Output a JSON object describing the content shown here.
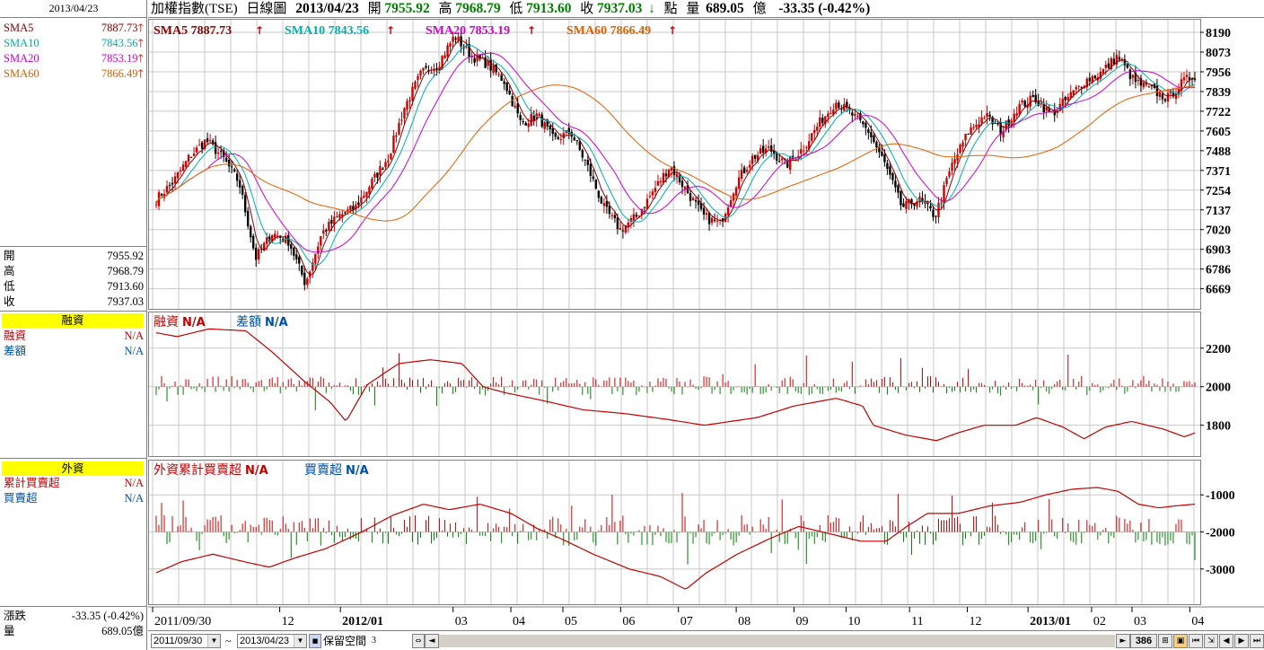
{
  "left_panel": {
    "date": "2013/04/23",
    "sma": [
      {
        "label": "SMA5",
        "value": "7887.73",
        "color": "#8b0000"
      },
      {
        "label": "SMA10",
        "value": "7843.56",
        "color": "#00b0b0"
      },
      {
        "label": "SMA20",
        "value": "7853.19",
        "color": "#d000d0"
      },
      {
        "label": "SMA60",
        "value": "7866.49",
        "color": "#e06000"
      }
    ],
    "ohlc": [
      {
        "label": "開",
        "value": "7955.92"
      },
      {
        "label": "高",
        "value": "7968.79"
      },
      {
        "label": "低",
        "value": "7913.60"
      },
      {
        "label": "收",
        "value": "7937.03"
      }
    ],
    "margin_head": "融資",
    "margin_rows": [
      {
        "label": "融資",
        "value": "N/A",
        "color": "#c00000"
      },
      {
        "label": "差額",
        "value": "N/A",
        "color": "#0050a0"
      }
    ],
    "foreign_head": "外資",
    "foreign_rows": [
      {
        "label": "累計買賣超",
        "value": "N/A",
        "color": "#c00000"
      },
      {
        "label": "買賣超",
        "value": "N/A",
        "color": "#0050a0"
      }
    ],
    "change_label": "漲跌",
    "change_value": "-33.35 (-0.42%)",
    "volume_label": "量",
    "volume_value": "689.05億"
  },
  "titlebar": {
    "name": "加權指數(TSE)",
    "view": "日線圖",
    "date": "2013/04/23",
    "open_label": "開",
    "open": "7955.92",
    "high_label": "高",
    "high": "7968.79",
    "low_label": "低",
    "low": "7913.60",
    "close_label": "收",
    "close": "7937.03",
    "down_arrow": "↓",
    "unit_point": "點",
    "volume_label": "量",
    "volume": "689.05",
    "volume_unit": "億",
    "change": "-33.35 (-0.42%)"
  },
  "toolbar": {
    "start_date": "2011/09/30",
    "tilde": "~",
    "end_date": "2013/04/23",
    "reserve_label": "保留空間",
    "reserve_value": "3",
    "bar_count": "386"
  },
  "colors": {
    "up_bar": "#d00000",
    "down_bar": "#008000",
    "sma5": "#8b0000",
    "sma10": "#00b0b0",
    "sma20": "#d000d0",
    "sma60": "#e06000",
    "margin_line": "#c00000",
    "foreign_line": "#c00000",
    "grid": "#c8c8c8"
  },
  "chart_data": [
    {
      "type": "line",
      "name": "price",
      "legend": [
        {
          "label": "SMA5",
          "value": "7887.73",
          "color": "#8b0000"
        },
        {
          "label": "SMA10",
          "value": "7843.56",
          "color": "#00b0b0"
        },
        {
          "label": "SMA20",
          "value": "7853.19",
          "color": "#d000d0"
        },
        {
          "label": "SMA60",
          "value": "7866.49",
          "color": "#e06000"
        }
      ],
      "legend_arrow": "↑",
      "yticks": [
        8190,
        8073,
        7956,
        7839,
        7722,
        7605,
        7488,
        7371,
        7254,
        7137,
        7020,
        6903,
        6786,
        6669
      ],
      "ylim": [
        6550,
        8270
      ],
      "xticks": [
        {
          "label": "2011/09/30",
          "day": 0,
          "bold": false
        },
        {
          "label": "12",
          "day": 44,
          "bold": false
        },
        {
          "label": "2012/01",
          "day": 65,
          "bold": true
        },
        {
          "label": "03",
          "day": 104,
          "bold": false
        },
        {
          "label": "04",
          "day": 124,
          "bold": false
        },
        {
          "label": "05",
          "day": 142,
          "bold": false
        },
        {
          "label": "06",
          "day": 162,
          "bold": false
        },
        {
          "label": "07",
          "day": 182,
          "bold": false
        },
        {
          "label": "08",
          "day": 202,
          "bold": false
        },
        {
          "label": "09",
          "day": 222,
          "bold": false
        },
        {
          "label": "10",
          "day": 240,
          "bold": false
        },
        {
          "label": "11",
          "day": 262,
          "bold": false
        },
        {
          "label": "12",
          "day": 282,
          "bold": false
        },
        {
          "label": "2013/01",
          "day": 303,
          "bold": true
        },
        {
          "label": "02",
          "day": 325,
          "bold": false
        },
        {
          "label": "03",
          "day": 339,
          "bold": false
        },
        {
          "label": "04",
          "day": 359,
          "bold": false
        }
      ],
      "total_days": 350,
      "anchors": [
        [
          0,
          7200
        ],
        [
          6,
          7300
        ],
        [
          12,
          7450
        ],
        [
          18,
          7550
        ],
        [
          24,
          7450
        ],
        [
          30,
          7300
        ],
        [
          36,
          6850
        ],
        [
          42,
          7000
        ],
        [
          48,
          6950
        ],
        [
          54,
          6700
        ],
        [
          60,
          7000
        ],
        [
          66,
          7100
        ],
        [
          72,
          7150
        ],
        [
          78,
          7300
        ],
        [
          84,
          7450
        ],
        [
          90,
          7750
        ],
        [
          96,
          7950
        ],
        [
          102,
          8000
        ],
        [
          108,
          8170
        ],
        [
          114,
          8050
        ],
        [
          120,
          8000
        ],
        [
          126,
          7900
        ],
        [
          132,
          7650
        ],
        [
          138,
          7700
        ],
        [
          144,
          7550
        ],
        [
          150,
          7600
        ],
        [
          156,
          7400
        ],
        [
          162,
          7150
        ],
        [
          168,
          7020
        ],
        [
          174,
          7100
        ],
        [
          180,
          7250
        ],
        [
          186,
          7400
        ],
        [
          192,
          7250
        ],
        [
          198,
          7100
        ],
        [
          204,
          7050
        ],
        [
          210,
          7300
        ],
        [
          216,
          7450
        ],
        [
          222,
          7500
        ],
        [
          228,
          7400
        ],
        [
          234,
          7500
        ],
        [
          240,
          7650
        ],
        [
          246,
          7780
        ],
        [
          252,
          7700
        ],
        [
          258,
          7600
        ],
        [
          264,
          7400
        ],
        [
          270,
          7150
        ],
        [
          276,
          7200
        ],
        [
          282,
          7100
        ],
        [
          288,
          7400
        ],
        [
          294,
          7600
        ],
        [
          300,
          7700
        ],
        [
          306,
          7600
        ],
        [
          312,
          7750
        ],
        [
          318,
          7800
        ],
        [
          324,
          7700
        ],
        [
          330,
          7800
        ],
        [
          336,
          7900
        ],
        [
          342,
          7950
        ],
        [
          348,
          8050
        ],
        [
          354,
          7900
        ],
        [
          360,
          7850
        ],
        [
          366,
          7800
        ],
        [
          372,
          7900
        ],
        [
          376,
          7937
        ]
      ]
    },
    {
      "type": "bar",
      "name": "margin",
      "title": "融資",
      "title_value": "N/A",
      "subtitle": "差額",
      "subtitle_value": "N/A",
      "yticks": [
        2200,
        2000,
        1800
      ],
      "ylim": [
        1640,
        2390
      ],
      "line_anchors": [
        [
          0,
          2280
        ],
        [
          8,
          2260
        ],
        [
          20,
          2300
        ],
        [
          34,
          2290
        ],
        [
          44,
          2180
        ],
        [
          56,
          2030
        ],
        [
          66,
          1920
        ],
        [
          72,
          1820
        ],
        [
          80,
          2010
        ],
        [
          92,
          2120
        ],
        [
          104,
          2140
        ],
        [
          116,
          2120
        ],
        [
          124,
          2000
        ],
        [
          132,
          1970
        ],
        [
          146,
          1930
        ],
        [
          162,
          1880
        ],
        [
          178,
          1860
        ],
        [
          194,
          1830
        ],
        [
          208,
          1800
        ],
        [
          228,
          1840
        ],
        [
          242,
          1900
        ],
        [
          258,
          1940
        ],
        [
          268,
          1900
        ],
        [
          272,
          1800
        ],
        [
          284,
          1750
        ],
        [
          296,
          1720
        ],
        [
          304,
          1760
        ],
        [
          314,
          1800
        ],
        [
          326,
          1800
        ],
        [
          334,
          1840
        ],
        [
          344,
          1790
        ],
        [
          348,
          1760
        ],
        [
          352,
          1730
        ],
        [
          360,
          1790
        ],
        [
          370,
          1820
        ],
        [
          382,
          1780
        ],
        [
          390,
          1740
        ],
        [
          394,
          1760
        ]
      ]
    },
    {
      "type": "bar",
      "name": "foreign",
      "title": "外資累計買賣超",
      "title_value": "N/A",
      "subtitle": "買賣超",
      "subtitle_value": "N/A",
      "yticks": [
        -1000,
        -2000,
        -3000
      ],
      "ylim": [
        -3950,
        -50
      ],
      "line_anchors": [
        [
          0,
          -3100
        ],
        [
          10,
          -2800
        ],
        [
          22,
          -2600
        ],
        [
          34,
          -2800
        ],
        [
          44,
          -2950
        ],
        [
          54,
          -2700
        ],
        [
          66,
          -2450
        ],
        [
          80,
          -2000
        ],
        [
          92,
          -1550
        ],
        [
          104,
          -1250
        ],
        [
          114,
          -1400
        ],
        [
          126,
          -1250
        ],
        [
          138,
          -1500
        ],
        [
          148,
          -1900
        ],
        [
          158,
          -2200
        ],
        [
          170,
          -2600
        ],
        [
          184,
          -3000
        ],
        [
          196,
          -3200
        ],
        [
          206,
          -3550
        ],
        [
          214,
          -3100
        ],
        [
          226,
          -2600
        ],
        [
          238,
          -2200
        ],
        [
          250,
          -1850
        ],
        [
          262,
          -2050
        ],
        [
          274,
          -2250
        ],
        [
          284,
          -2250
        ],
        [
          292,
          -1850
        ],
        [
          300,
          -1500
        ],
        [
          312,
          -1500
        ],
        [
          324,
          -1300
        ],
        [
          336,
          -1200
        ],
        [
          346,
          -1000
        ],
        [
          356,
          -850
        ],
        [
          366,
          -800
        ],
        [
          374,
          -900
        ],
        [
          382,
          -1250
        ],
        [
          390,
          -1350
        ],
        [
          396,
          -1300
        ],
        [
          404,
          -1250
        ]
      ]
    }
  ]
}
